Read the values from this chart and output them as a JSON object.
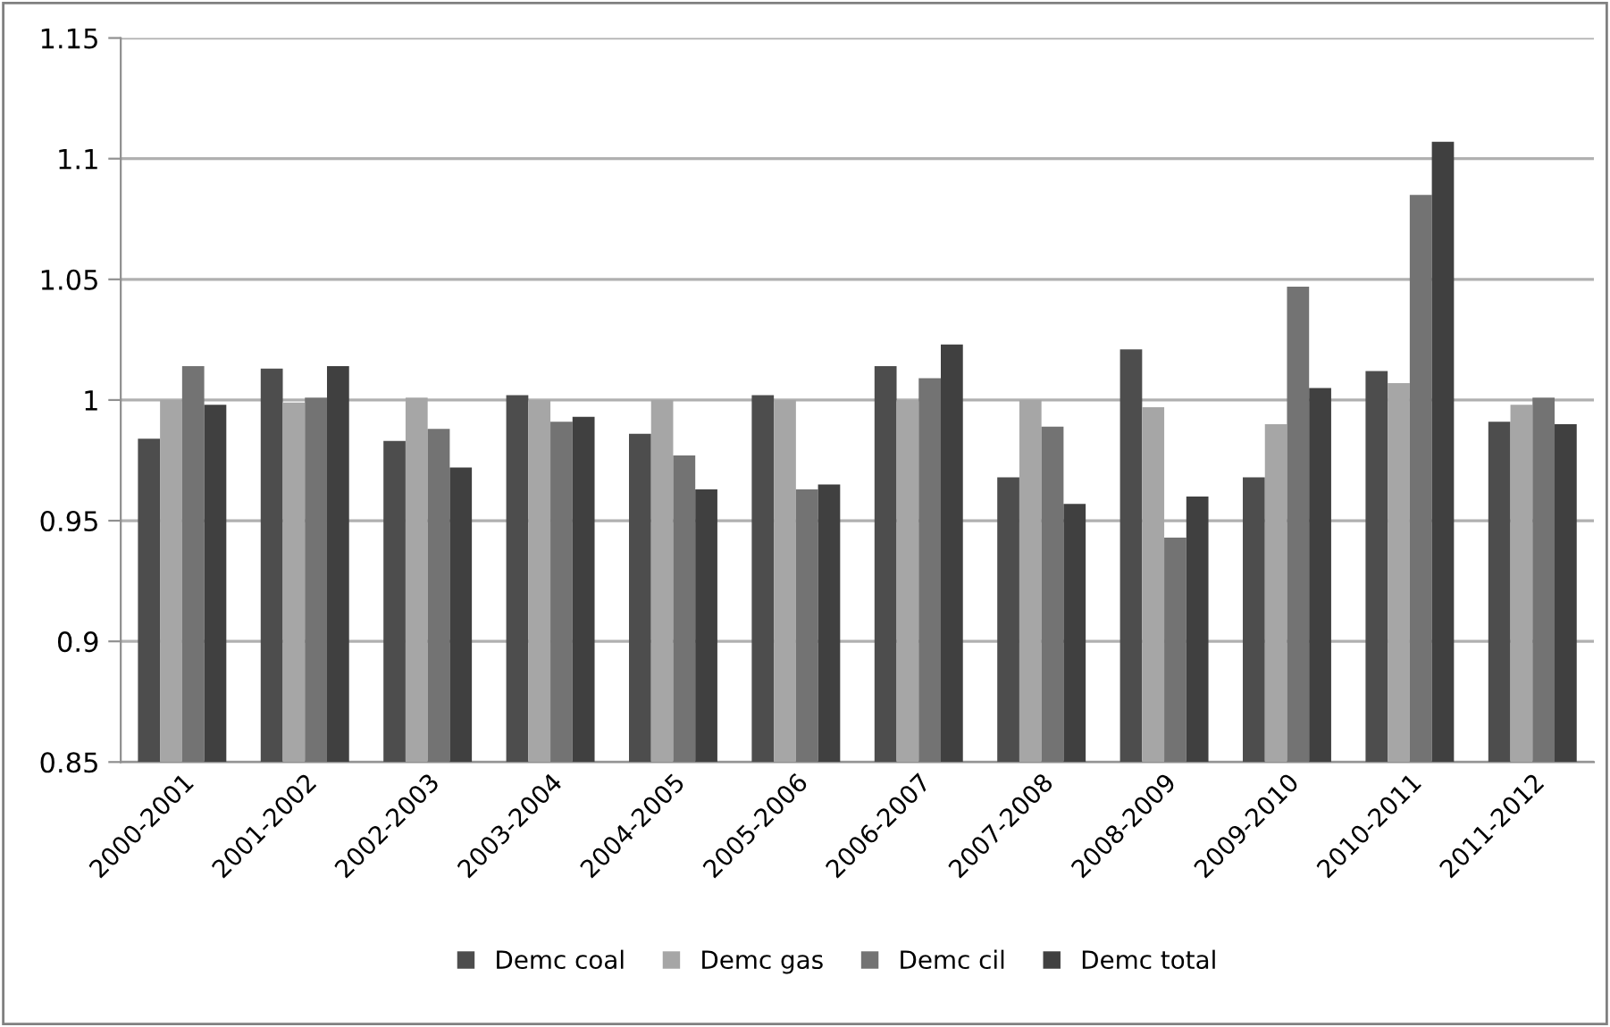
{
  "chart_data": {
    "type": "bar",
    "categories": [
      "2000-2001",
      "2001-2002",
      "2002-2003",
      "2003-2004",
      "2004-2005",
      "2005-2006",
      "2006-2007",
      "2007-2008",
      "2008-2009",
      "2009-2010",
      "2010-2011",
      "2011-2012"
    ],
    "series": [
      {
        "name": "Demc coal",
        "color": "#4d4d4d",
        "values": [
          0.984,
          1.013,
          0.983,
          1.002,
          0.986,
          1.002,
          1.014,
          0.968,
          1.021,
          0.968,
          1.012,
          0.991
        ]
      },
      {
        "name": "Demc gas",
        "color": "#a6a6a6",
        "values": [
          1.0,
          0.999,
          1.001,
          1.0,
          1.0,
          1.0,
          1.0,
          1.0,
          0.997,
          0.99,
          1.007,
          0.998
        ]
      },
      {
        "name": "Demc cil",
        "color": "#737373",
        "values": [
          1.014,
          1.001,
          0.988,
          0.991,
          0.977,
          0.963,
          1.009,
          0.989,
          0.943,
          1.047,
          1.085,
          1.001
        ]
      },
      {
        "name": "Demc total",
        "color": "#404040",
        "values": [
          0.998,
          1.014,
          0.972,
          0.993,
          0.963,
          0.965,
          1.023,
          0.957,
          0.96,
          1.005,
          1.107,
          0.99
        ]
      }
    ],
    "ylim": [
      0.85,
      1.15
    ],
    "yticks": [
      0.85,
      0.9,
      0.95,
      1,
      1.05,
      1.1,
      1.15
    ],
    "grid": "y",
    "legend": "bottom"
  }
}
